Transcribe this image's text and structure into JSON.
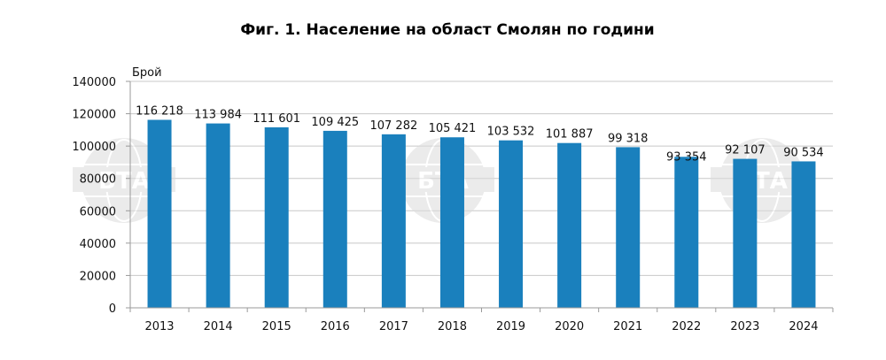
{
  "chart_data": {
    "type": "bar",
    "title": "Фиг. 1. Население на област Смолян по години",
    "ylabel": "Брой",
    "xlabel": "",
    "categories": [
      "2013",
      "2014",
      "2015",
      "2016",
      "2017",
      "2018",
      "2019",
      "2020",
      "2021",
      "2022",
      "2023",
      "2024"
    ],
    "values": [
      116218,
      113984,
      111601,
      109425,
      107282,
      105421,
      103532,
      101887,
      99318,
      93354,
      92107,
      90534
    ],
    "value_labels": [
      "116 218",
      "113 984",
      "111 601",
      "109 425",
      "107 282",
      "105 421",
      "103 532",
      "101 887",
      "99 318",
      "93 354",
      "92 107",
      "90 534"
    ],
    "ylim": [
      0,
      140000
    ],
    "yticks": [
      0,
      20000,
      40000,
      60000,
      80000,
      100000,
      120000,
      140000
    ],
    "ytick_labels": [
      "0",
      "20000",
      "40000",
      "60000",
      "80000",
      "100000",
      "120000",
      "140000"
    ],
    "grid": true,
    "legend": "none",
    "colors": {
      "bar": "#1a80bd",
      "grid": "#c8c8c8",
      "axis": "#9a9a9a",
      "watermark": "#dcdcdc"
    }
  },
  "watermark": {
    "text": "БТА",
    "icon": "bta-globe-logo",
    "count": 3
  }
}
